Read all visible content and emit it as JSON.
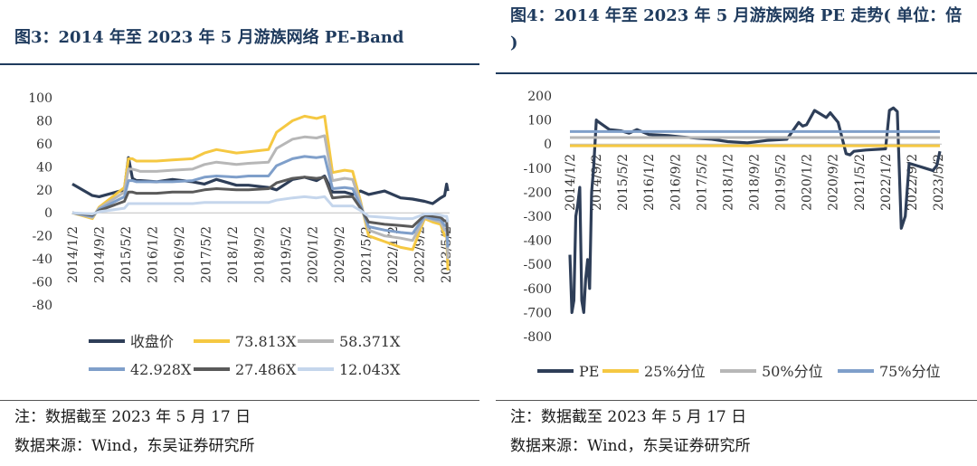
{
  "left": {
    "title": "图3：2014 年至 2023 年 5 月游族网络 PE-Band",
    "note": "注：数据截至 2023 年 5 月 17 日",
    "source": "数据来源：Wind，东吴证券研究所"
  },
  "right": {
    "title": "图4：2014 年至 2023 年 5 月游族网络 PE 走势( 单位：倍 )",
    "note": "注：数据截至 2023 年 5 月 17 日",
    "source": "数据来源：Wind，东吴证券研究所"
  },
  "chart_data": [
    {
      "type": "line",
      "title": "2014 年至 2023 年 5 月游族网络 PE-Band",
      "ylim": [
        -80,
        100
      ],
      "yticks": [
        100,
        80,
        60,
        40,
        20,
        0,
        -20,
        -40,
        -60,
        -80
      ],
      "xlabels": [
        "2014/1/2",
        "2014/9/2",
        "2015/5/2",
        "2016/1/2",
        "2016/9/2",
        "2017/5/2",
        "2018/1/2",
        "2018/9/2",
        "2019/5/2",
        "2020/1/2",
        "2020/9/2",
        "2021/5/2",
        "2022/1/2",
        "2022/9/2",
        "2023/5/2"
      ],
      "x": [
        2014.0,
        2014.5,
        2014.67,
        2015.3,
        2015.4,
        2015.5,
        2015.6,
        2015.7,
        2016.1,
        2016.5,
        2017.0,
        2017.3,
        2017.6,
        2018.1,
        2018.4,
        2018.9,
        2019.1,
        2019.5,
        2019.8,
        2020.1,
        2020.3,
        2020.5,
        2020.8,
        2021.0,
        2021.2,
        2021.4,
        2021.8,
        2022.2,
        2022.5,
        2022.8,
        2023.0,
        2023.2,
        2023.3,
        2023.35,
        2023.38
      ],
      "series": [
        {
          "name": "收盘价",
          "color": "#2e3e58",
          "values": [
            25,
            15,
            14,
            20,
            48,
            30,
            28,
            28,
            27,
            29,
            27,
            25,
            29,
            24,
            24,
            22,
            20,
            29,
            31,
            28,
            32,
            18,
            18,
            16,
            19,
            16,
            19,
            13,
            12,
            10,
            8,
            13,
            15,
            25,
            19
          ]
        },
        {
          "name": "73.813X",
          "color": "#f5c842",
          "values": [
            0,
            -5,
            5,
            22,
            47,
            47,
            45,
            45,
            45,
            46,
            47,
            52,
            55,
            52,
            53,
            55,
            70,
            80,
            84,
            82,
            84,
            35,
            37,
            36,
            10,
            -20,
            -25,
            -30,
            -32,
            -5,
            -8,
            -10,
            -20,
            -20,
            -50
          ]
        },
        {
          "name": "58.371X",
          "color": "#b7b7b7",
          "values": [
            0,
            -4,
            4,
            18,
            38,
            38,
            37,
            36,
            36,
            37,
            38,
            42,
            44,
            42,
            43,
            44,
            56,
            64,
            66,
            65,
            67,
            28,
            30,
            29,
            8,
            -15,
            -20,
            -22,
            -24,
            -4,
            -6,
            -8,
            -15,
            -15,
            -40
          ]
        },
        {
          "name": "42.928X",
          "color": "#7f9fca",
          "values": [
            0,
            -3,
            3,
            14,
            28,
            28,
            27,
            27,
            27,
            27,
            28,
            31,
            32,
            31,
            32,
            32,
            41,
            47,
            49,
            48,
            49,
            21,
            22,
            21,
            6,
            -12,
            -15,
            -17,
            -18,
            -3,
            -5,
            -6,
            -11,
            -11,
            -30
          ]
        },
        {
          "name": "27.486X",
          "color": "#5a5a5a",
          "values": [
            0,
            -2,
            2,
            10,
            18,
            18,
            17,
            17,
            17,
            18,
            18,
            20,
            21,
            20,
            20,
            21,
            26,
            30,
            31,
            30,
            31,
            13,
            14,
            14,
            4,
            -8,
            -10,
            -11,
            -12,
            -2,
            -3,
            -4,
            -7,
            -7,
            -20
          ]
        },
        {
          "name": "12.043X",
          "color": "#c5d6ec",
          "values": [
            0,
            -1,
            1,
            4,
            8,
            8,
            8,
            8,
            8,
            8,
            8,
            9,
            9,
            9,
            9,
            9,
            11,
            13,
            14,
            13,
            14,
            6,
            6,
            6,
            2,
            -3,
            -4,
            -5,
            -5,
            -1,
            -1,
            -2,
            -3,
            -3,
            -8
          ]
        }
      ],
      "legend": "bottom"
    },
    {
      "type": "line",
      "title": "2014 年至 2023 年 5 月游族网络 PE 走势( 单位：倍 )",
      "ylim": [
        -800,
        200
      ],
      "yticks": [
        200,
        100,
        0,
        -100,
        -200,
        -300,
        -400,
        -500,
        -600,
        -700,
        -800
      ],
      "xlabels": [
        "2014/1/2",
        "2014/9/2",
        "2015/5/2",
        "2016/1/2",
        "2016/9/2",
        "2017/5/2",
        "2018/1/2",
        "2018/9/2",
        "2019/5/2",
        "2020/1/2",
        "2020/9/2",
        "2021/5/2",
        "2022/1/2",
        "2022/9/2",
        "2023/5/2"
      ],
      "x": [
        2014.0,
        2014.05,
        2014.1,
        2014.15,
        2014.2,
        2014.25,
        2014.3,
        2014.35,
        2014.4,
        2014.45,
        2014.5,
        2014.55,
        2014.6,
        2014.67,
        2014.7,
        2015.0,
        2015.3,
        2015.5,
        2015.7,
        2016.0,
        2016.5,
        2016.8,
        2017.2,
        2017.6,
        2018.0,
        2018.5,
        2019.0,
        2019.5,
        2019.8,
        2019.9,
        2020.0,
        2020.2,
        2020.5,
        2020.6,
        2020.8,
        2021.0,
        2021.1,
        2021.2,
        2021.5,
        2022.0,
        2022.1,
        2022.2,
        2022.3,
        2022.4,
        2022.5,
        2022.6,
        2022.8,
        2023.0,
        2023.2,
        2023.3,
        2023.38
      ],
      "series": [
        {
          "name": "PE",
          "color": "#2e3e58",
          "values": [
            -460,
            -700,
            -650,
            -300,
            -250,
            -180,
            -650,
            -700,
            -560,
            -480,
            -600,
            -200,
            -100,
            100,
            95,
            60,
            55,
            45,
            60,
            40,
            35,
            30,
            25,
            20,
            10,
            5,
            15,
            20,
            90,
            75,
            80,
            140,
            110,
            130,
            90,
            -40,
            -45,
            -30,
            -25,
            -20,
            140,
            150,
            135,
            -350,
            -300,
            -80,
            -90,
            -100,
            -110,
            -90,
            -30
          ]
        },
        {
          "name": "25%分位",
          "color": "#f5c842",
          "values": [
            -7,
            -7,
            -7,
            -7,
            -7,
            -7,
            -7,
            -7,
            -7,
            -7,
            -7,
            -7,
            -7,
            -7,
            -7,
            -7,
            -7,
            -7,
            -7,
            -7,
            -7,
            -7,
            -7,
            -7,
            -7,
            -7,
            -7,
            -7,
            -7,
            -7,
            -7,
            -7,
            -7,
            -7,
            -7,
            -7,
            -7,
            -7,
            -7,
            -7,
            -7,
            -7,
            -7,
            -7,
            -7,
            -7,
            -7,
            -7,
            -7,
            -7,
            -7
          ]
        },
        {
          "name": "50%分位",
          "color": "#b7b7b7",
          "values": [
            27,
            27,
            27,
            27,
            27,
            27,
            27,
            27,
            27,
            27,
            27,
            27,
            27,
            27,
            27,
            27,
            27,
            27,
            27,
            27,
            27,
            27,
            27,
            27,
            27,
            27,
            27,
            27,
            27,
            27,
            27,
            27,
            27,
            27,
            27,
            27,
            27,
            27,
            27,
            27,
            27,
            27,
            27,
            27,
            27,
            27,
            27,
            27,
            27,
            27,
            27
          ]
        },
        {
          "name": "75%分位",
          "color": "#7f9fca",
          "values": [
            52,
            52,
            52,
            52,
            52,
            52,
            52,
            52,
            52,
            52,
            52,
            52,
            52,
            52,
            52,
            52,
            52,
            52,
            52,
            52,
            52,
            52,
            52,
            52,
            52,
            52,
            52,
            52,
            52,
            52,
            52,
            52,
            52,
            52,
            52,
            52,
            52,
            52,
            52,
            52,
            52,
            52,
            52,
            52,
            52,
            52,
            52,
            52,
            52,
            52,
            52
          ]
        }
      ],
      "legend": "bottom"
    }
  ]
}
